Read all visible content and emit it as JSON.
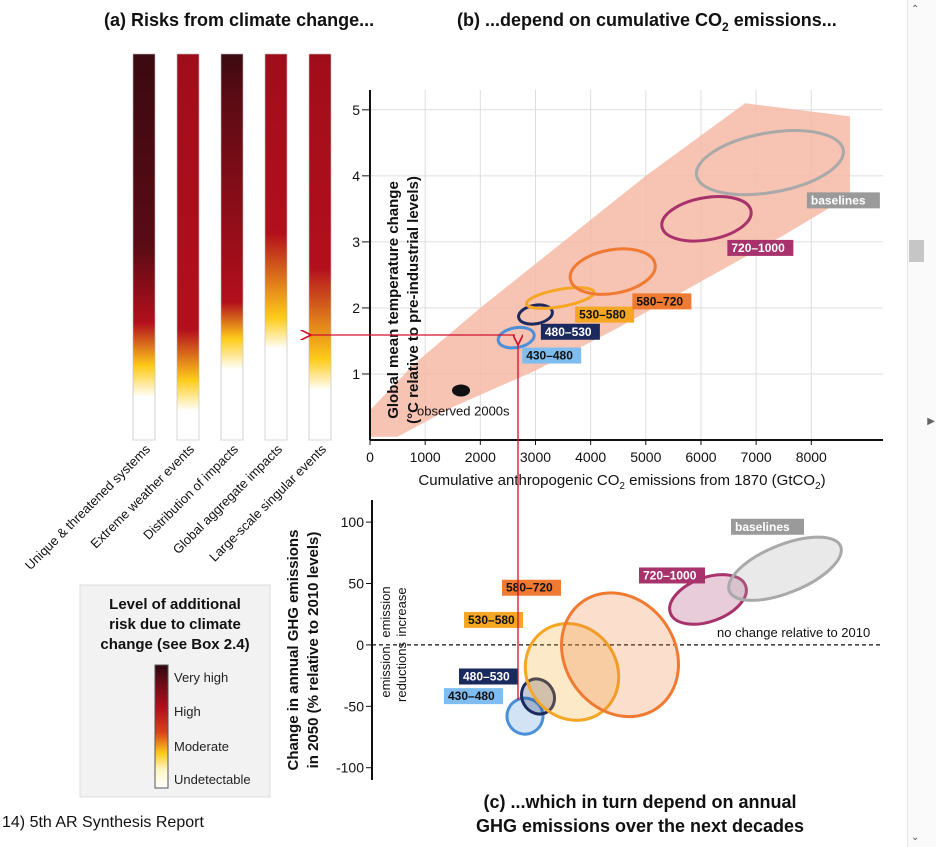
{
  "caption": "14) 5th AR Synthesis Report",
  "chart_data": [
    {
      "id": "a",
      "type": "heatmap",
      "title": "(a) Risks from climate change...",
      "bars": [
        {
          "label": "Unique & threatened systems",
          "transitions": {
            "undetectable_to_moderate": 0.9,
            "moderate_to_high": 1.7,
            "high_to_very_high": 2.8
          }
        },
        {
          "label": "Extreme weather events",
          "transitions": {
            "undetectable_to_moderate": 0.7,
            "moderate_to_high": 1.6,
            "high_to_very_high": null
          }
        },
        {
          "label": "Distribution of impacts",
          "transitions": {
            "undetectable_to_moderate": 1.3,
            "moderate_to_high": 2.0,
            "high_to_very_high": 5.0
          }
        },
        {
          "label": "Global aggregate impacts",
          "transitions": {
            "undetectable_to_moderate": 1.6,
            "moderate_to_high": 3.0,
            "high_to_very_high": null
          }
        },
        {
          "label": "Large-scale singular events",
          "transitions": {
            "undetectable_to_moderate": 1.0,
            "moderate_to_high": 2.5,
            "high_to_very_high": null
          }
        }
      ],
      "legend": {
        "title": "Level of additional risk due to climate change (see Box 2.4)",
        "levels": [
          "Very high",
          "High",
          "Moderate",
          "Undetectable"
        ],
        "colors": {
          "very_high": "#3b0a10",
          "high": "#b30f1c",
          "moderate": "#ffcc1a",
          "undetectable": "#ffffff"
        }
      }
    },
    {
      "id": "b",
      "type": "scatter",
      "title_prefix": "(b) ...depend on cumulative CO",
      "title_sub": "2",
      "title_suffix": " emissions...",
      "xlabel_prefix": "Cumulative anthropogenic CO",
      "xlabel_sub": "2",
      "xlabel_mid": " emissions from 1870 (GtCO",
      "xlabel_sub2": "2",
      "xlabel_suffix": ")",
      "ylabel_line1": "Global mean temperature change",
      "ylabel_line2": "(°C relative to pre-industrial levels)",
      "xlim": [
        0,
        9300
      ],
      "ylim": [
        0,
        5.3
      ],
      "xticks": [
        0,
        1000,
        2000,
        3000,
        4000,
        5000,
        6000,
        7000,
        8000
      ],
      "yticks": [
        1,
        2,
        3,
        4,
        5
      ],
      "grid": true,
      "observed": {
        "label": "observed 2000s",
        "x": 1650,
        "y": 0.75
      },
      "scenarios": [
        {
          "name": "430–480",
          "x": 2650,
          "y": 1.55,
          "rx": 330,
          "ry": 0.15,
          "color": "#4a90d9",
          "tag_bg": "#7fbcf0"
        },
        {
          "name": "480–530",
          "x": 3000,
          "y": 1.9,
          "rx": 310,
          "ry": 0.14,
          "color": "#1b2a5e",
          "tag_bg": "#1b2a5e"
        },
        {
          "name": "530–580",
          "x": 3450,
          "y": 2.15,
          "rx": 620,
          "ry": 0.13,
          "color": "#f5a623",
          "tag_bg": "#f5a623"
        },
        {
          "name": "580–720",
          "x": 4400,
          "y": 2.55,
          "rx": 780,
          "ry": 0.33,
          "color": "#f07a32",
          "tag_bg": "#f07a32"
        },
        {
          "name": "720–1000",
          "x": 6100,
          "y": 3.35,
          "rx": 820,
          "ry": 0.32,
          "color": "#a8326b",
          "tag_bg": "#a8326b"
        },
        {
          "name": "baselines",
          "x": 7250,
          "y": 4.2,
          "rx": 1350,
          "ry": 0.45,
          "color": "#a9a9a9",
          "tag_bg": "#9a9a9a"
        }
      ]
    },
    {
      "id": "c",
      "type": "scatter",
      "title": "(c) ...which in turn depend on annual GHG emissions over the next decades",
      "ylabel_line1": "Change in annual GHG emissions",
      "ylabel_line2": "in 2050 (% relative to 2010 levels)",
      "ylim": [
        -110,
        118
      ],
      "yticks": [
        100,
        50,
        0,
        -50,
        -100
      ],
      "zero_line_label": "no change relative to 2010",
      "emission_increase": [
        "emission",
        "increase"
      ],
      "emission_reductions": [
        "emission",
        "reductions"
      ],
      "scenarios": [
        {
          "name": "430–480",
          "y": -58,
          "color": "#4a90d9",
          "tag_bg": "#7fbcf0"
        },
        {
          "name": "480–530",
          "y": -42,
          "color": "#1b2a5e",
          "tag_bg": "#1b2a5e"
        },
        {
          "name": "530–580",
          "y": -22,
          "color": "#f5a623",
          "tag_bg": "#f5a623"
        },
        {
          "name": "580–720",
          "y": -8,
          "color": "#f07a32",
          "tag_bg": "#f07a32"
        },
        {
          "name": "720–1000",
          "y": 37,
          "color": "#a8326b",
          "tag_bg": "#a8326b"
        },
        {
          "name": "baselines",
          "y": 62,
          "color": "#a9a9a9",
          "tag_bg": "#9a9a9a"
        }
      ]
    }
  ],
  "icons": {
    "scroll_up": "chevron-up-icon",
    "scroll_down": "chevron-down-icon",
    "side_arrow": "triangle-right-icon"
  }
}
